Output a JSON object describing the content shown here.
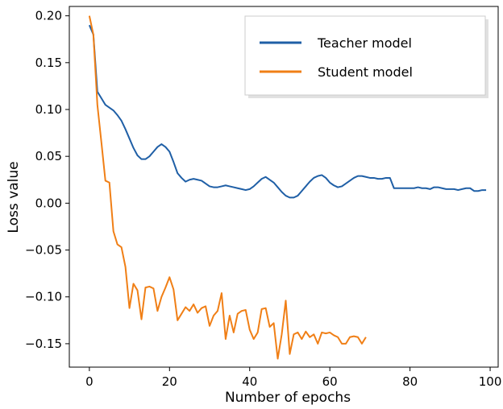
{
  "chart_data": {
    "type": "line",
    "xlabel": "Number of epochs",
    "ylabel": "Loss value",
    "xlim": [
      -5,
      102
    ],
    "ylim": [
      -0.175,
      0.21
    ],
    "xticks": [
      0,
      20,
      40,
      60,
      80,
      100
    ],
    "yticks": [
      0.2,
      0.15,
      0.1,
      0.05,
      0.0,
      -0.05,
      -0.1,
      -0.15
    ],
    "ytick_labels": [
      "0.20",
      "0.15",
      "0.10",
      "0.05",
      "0.00",
      "−0.05",
      "−0.10",
      "−0.15"
    ],
    "grid": false,
    "legend_position": "top-right",
    "series": [
      {
        "name": "Teacher model",
        "color": "#1f5fa6",
        "x": [
          0,
          1,
          2,
          3,
          4,
          5,
          6,
          7,
          8,
          9,
          10,
          11,
          12,
          13,
          14,
          15,
          16,
          17,
          18,
          19,
          20,
          21,
          22,
          23,
          24,
          25,
          26,
          27,
          28,
          29,
          30,
          31,
          32,
          33,
          34,
          35,
          36,
          37,
          38,
          39,
          40,
          41,
          42,
          43,
          44,
          45,
          46,
          47,
          48,
          49,
          50,
          51,
          52,
          53,
          54,
          55,
          56,
          57,
          58,
          59,
          60,
          61,
          62,
          63,
          64,
          65,
          66,
          67,
          68,
          69,
          70,
          71,
          72,
          73,
          74,
          75,
          76,
          77,
          78,
          79,
          80,
          81,
          82,
          83,
          84,
          85,
          86,
          87,
          88,
          89,
          90,
          91,
          92,
          93,
          94,
          95,
          96,
          97,
          98,
          99
        ],
        "y": [
          0.19,
          0.18,
          0.119,
          0.112,
          0.105,
          0.102,
          0.099,
          0.094,
          0.088,
          0.079,
          0.069,
          0.059,
          0.051,
          0.047,
          0.047,
          0.05,
          0.055,
          0.06,
          0.063,
          0.06,
          0.055,
          0.044,
          0.032,
          0.027,
          0.023,
          0.025,
          0.026,
          0.025,
          0.024,
          0.021,
          0.018,
          0.017,
          0.017,
          0.018,
          0.019,
          0.018,
          0.017,
          0.016,
          0.015,
          0.014,
          0.015,
          0.018,
          0.022,
          0.026,
          0.028,
          0.025,
          0.022,
          0.017,
          0.012,
          0.008,
          0.006,
          0.006,
          0.008,
          0.013,
          0.018,
          0.023,
          0.027,
          0.029,
          0.03,
          0.027,
          0.022,
          0.019,
          0.017,
          0.018,
          0.021,
          0.024,
          0.027,
          0.029,
          0.029,
          0.028,
          0.027,
          0.027,
          0.026,
          0.026,
          0.027,
          0.027,
          0.016,
          0.016,
          0.016,
          0.016,
          0.016,
          0.016,
          0.017,
          0.016,
          0.016,
          0.015,
          0.017,
          0.017,
          0.016,
          0.015,
          0.015,
          0.015,
          0.014,
          0.015,
          0.016,
          0.016,
          0.013,
          0.013,
          0.014,
          0.014
        ]
      },
      {
        "name": "Student model",
        "color": "#f07f16",
        "x": [
          0,
          1,
          2,
          3,
          4,
          5,
          6,
          7,
          8,
          9,
          10,
          11,
          12,
          13,
          14,
          15,
          16,
          17,
          18,
          19,
          20,
          21,
          22,
          23,
          24,
          25,
          26,
          27,
          28,
          29,
          30,
          31,
          32,
          33,
          34,
          35,
          36,
          37,
          38,
          39,
          40,
          41,
          42,
          43,
          44,
          45,
          46,
          47,
          48,
          49,
          50,
          51,
          52,
          53,
          54,
          55,
          56,
          57,
          58,
          59,
          60,
          61,
          62,
          63,
          64,
          65,
          66,
          67,
          68,
          69
        ],
        "y": [
          0.2,
          0.18,
          0.105,
          0.065,
          0.024,
          0.022,
          -0.03,
          -0.044,
          -0.047,
          -0.068,
          -0.112,
          -0.086,
          -0.093,
          -0.124,
          -0.09,
          -0.089,
          -0.091,
          -0.115,
          -0.1,
          -0.09,
          -0.079,
          -0.092,
          -0.125,
          -0.118,
          -0.111,
          -0.115,
          -0.108,
          -0.117,
          -0.112,
          -0.11,
          -0.131,
          -0.12,
          -0.115,
          -0.096,
          -0.145,
          -0.12,
          -0.138,
          -0.118,
          -0.115,
          -0.114,
          -0.135,
          -0.145,
          -0.138,
          -0.113,
          -0.112,
          -0.132,
          -0.128,
          -0.166,
          -0.14,
          -0.104,
          -0.161,
          -0.14,
          -0.138,
          -0.145,
          -0.137,
          -0.143,
          -0.14,
          -0.15,
          -0.138,
          -0.139,
          -0.138,
          -0.141,
          -0.143,
          -0.15,
          -0.15,
          -0.143,
          -0.142,
          -0.143,
          -0.15,
          -0.143
        ]
      }
    ]
  }
}
